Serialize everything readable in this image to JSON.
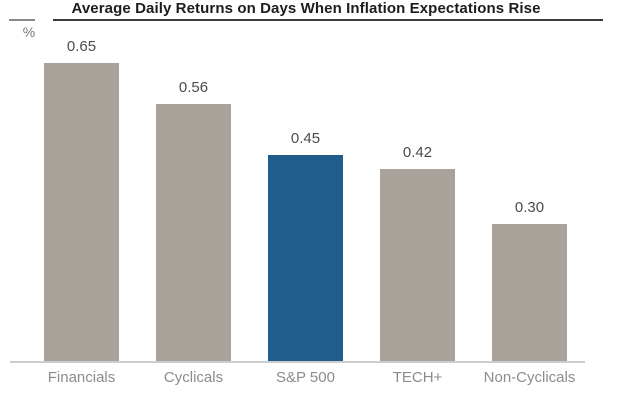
{
  "chart_data": {
    "type": "bar",
    "title": "Average Daily Returns on Days When Inflation Expectations Rise",
    "unit_label": "%",
    "xlabel": "",
    "ylabel": "%",
    "categories": [
      "Financials",
      "Cyclicals",
      "S&P 500",
      "TECH+",
      "Non-Cyclicals"
    ],
    "values": [
      0.65,
      0.56,
      0.45,
      0.42,
      0.3
    ],
    "value_labels": [
      "0.65",
      "0.56",
      "0.45",
      "0.42",
      "0.30"
    ],
    "highlight_index": 2,
    "highlighted_category": "S&P 500",
    "ylim": [
      0,
      0.7
    ],
    "grid": false,
    "legend_position": "none",
    "colors": {
      "bar": "#a9a29a",
      "highlight_bar": "#215d8c",
      "title_text": "#1d1d1d",
      "title_rule": "#3c3c3c",
      "unit_rule": "#8a8a8a",
      "unit_text": "#757575",
      "value_text": "#4b4b4b",
      "category_text": "#8c8c8c",
      "baseline": "#cdcdcd",
      "background": "#ffffff"
    }
  }
}
